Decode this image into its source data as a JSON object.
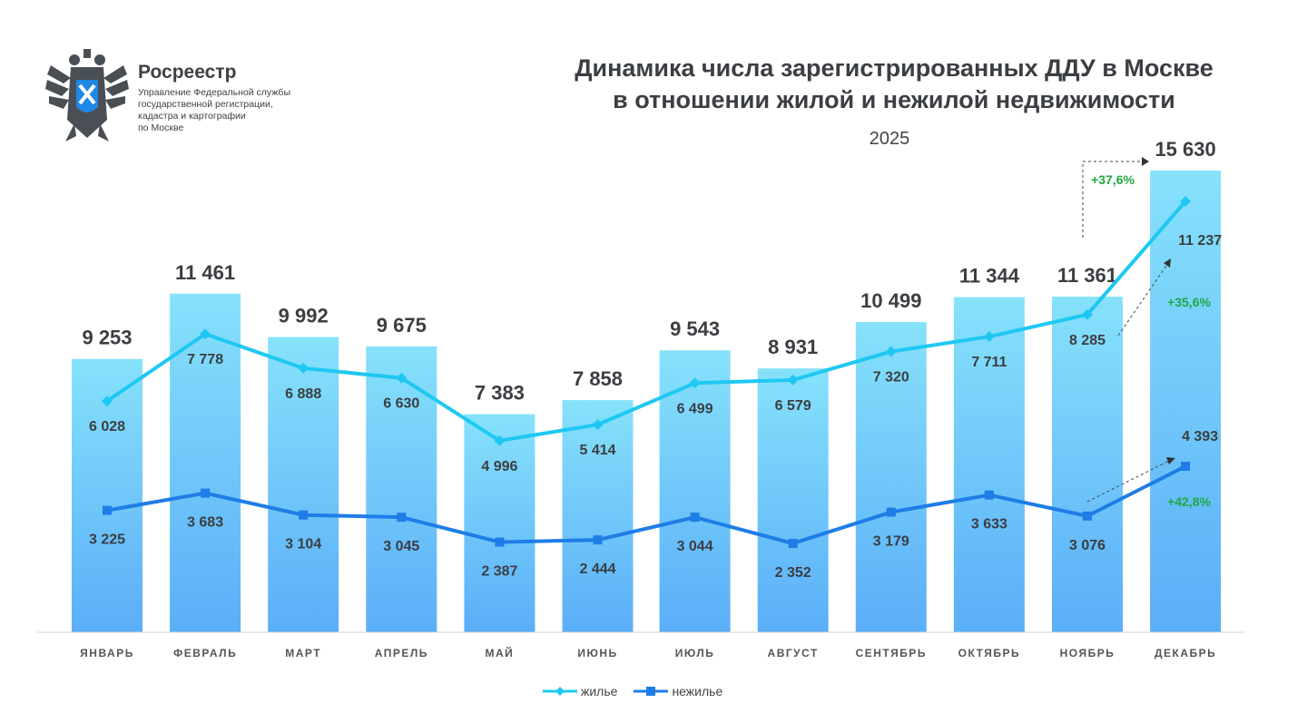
{
  "logo": {
    "name": "Росреестр",
    "subtitle_lines": [
      "Управление Федеральной службы",
      "государственной регистрации,",
      "кадастра и картографии",
      "по Москве"
    ]
  },
  "title_lines": [
    "Динамика числа зарегистрированных ДДУ в Москве",
    "в отношении жилой и нежилой недвижимости"
  ],
  "year": "2025",
  "chart_data": {
    "type": "bar",
    "categories": [
      "ЯНВАРЬ",
      "ФЕВРАЛЬ",
      "МАРТ",
      "АПРЕЛЬ",
      "МАЙ",
      "ИЮНЬ",
      "ИЮЛЬ",
      "АВГУСТ",
      "СЕНТЯБРЬ",
      "ОКТЯБРЬ",
      "НОЯБРЬ",
      "ДЕКАБРЬ"
    ],
    "totals": [
      9253,
      11461,
      9992,
      9675,
      7383,
      7858,
      9543,
      8931,
      10499,
      11344,
      11361,
      15630
    ],
    "total_labels": [
      "9 253",
      "11 461",
      "9 992",
      "9 675",
      "7 383",
      "7 858",
      "9 543",
      "8 931",
      "10 499",
      "11 344",
      "11 361",
      "15 630"
    ],
    "series": [
      {
        "name": "жилье",
        "type": "line",
        "color": "#1ec8f2",
        "values": [
          6028,
          7778,
          6888,
          6630,
          4996,
          5414,
          6499,
          6579,
          7320,
          7711,
          8285,
          11237
        ],
        "labels": [
          "6 028",
          "7 778",
          "6 888",
          "6 630",
          "4 996",
          "5 414",
          "6 499",
          "6 579",
          "7 320",
          "7 711",
          "8 285",
          "11 237"
        ]
      },
      {
        "name": "нежилье",
        "type": "line",
        "color": "#1e7de6",
        "values": [
          3225,
          3683,
          3104,
          3045,
          2387,
          2444,
          3044,
          2352,
          3179,
          3633,
          3076,
          4393
        ],
        "labels": [
          "3 225",
          "3 683",
          "3 104",
          "3 045",
          "2 387",
          "2 444",
          "3 044",
          "2 352",
          "3 179",
          "3 633",
          "3 076",
          "4 393"
        ]
      }
    ],
    "annotations": {
      "total_growth": "+37,6%",
      "residential_growth": "+35,6%",
      "nonresidential_growth": "+42,8%",
      "color": "#1fa843"
    },
    "bar_gradient": [
      "#86e2fb",
      "#5aaef8"
    ],
    "legend_position": "bottom",
    "grid": false
  }
}
